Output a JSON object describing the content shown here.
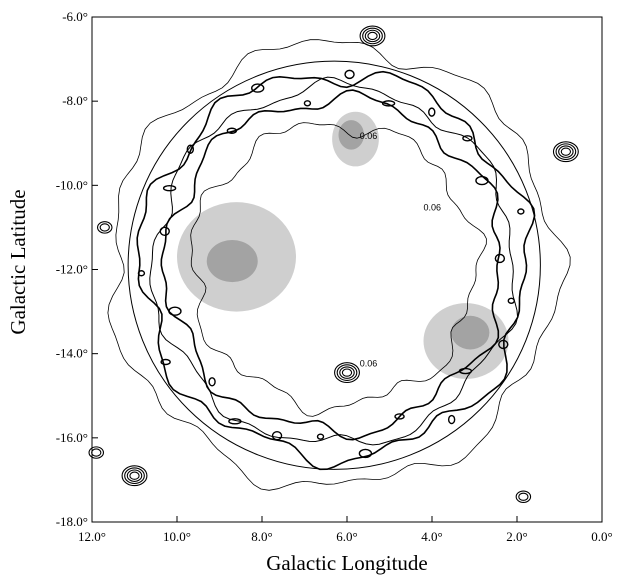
{
  "chart_data": {
    "type": "contour",
    "title": "",
    "xlabel": "Galactic Longitude",
    "ylabel": "Galactic Latitude",
    "xlim": [
      12.0,
      0.0
    ],
    "ylim": [
      -18.0,
      -6.0
    ],
    "x_reversed": true,
    "grid": false,
    "legend": "none",
    "x_ticks": [
      {
        "value": 12,
        "label": "12.0°"
      },
      {
        "value": 10,
        "label": "10.0°"
      },
      {
        "value": 8,
        "label": "8.0°"
      },
      {
        "value": 6,
        "label": "6.0°"
      },
      {
        "value": 4,
        "label": "4.0°"
      },
      {
        "value": 2,
        "label": "2.0°"
      },
      {
        "value": 0,
        "label": "0.0°"
      }
    ],
    "y_ticks": [
      {
        "value": -6,
        "label": "-6.0°"
      },
      {
        "value": -8,
        "label": "-8.0°"
      },
      {
        "value": -10,
        "label": "-10.0°"
      },
      {
        "value": -12,
        "label": "-12.0°"
      },
      {
        "value": -14,
        "label": "-14.0°"
      },
      {
        "value": -16,
        "label": "-16.0°"
      },
      {
        "value": -18,
        "label": "-18.0°"
      }
    ],
    "circle": {
      "center_l": 6.3,
      "center_b": -11.9,
      "radius_deg": 4.85
    },
    "shaded_regions": [
      {
        "name": "cloud-9-11",
        "l": 8.6,
        "b": -11.7,
        "rx": 1.4,
        "ry": 1.3,
        "level": 1
      },
      {
        "name": "cloud-9-11",
        "l": 8.7,
        "b": -11.8,
        "rx": 0.6,
        "ry": 0.5,
        "level": 2
      },
      {
        "name": "cloud-6-9",
        "l": 5.8,
        "b": -8.9,
        "rx": 0.55,
        "ry": 0.65,
        "level": 1
      },
      {
        "name": "cloud-6-9",
        "l": 5.9,
        "b": -8.8,
        "rx": 0.3,
        "ry": 0.35,
        "level": 2
      },
      {
        "name": "cloud-3-13",
        "l": 3.2,
        "b": -13.7,
        "rx": 1.0,
        "ry": 0.9,
        "level": 1
      },
      {
        "name": "cloud-3-13",
        "l": 3.1,
        "b": -13.5,
        "rx": 0.45,
        "ry": 0.4,
        "level": 2
      }
    ],
    "ring": {
      "center_l": 6.3,
      "center_b": -11.9,
      "inner": 3.6,
      "outer": 4.9
    },
    "compact_sources": [
      {
        "l": 5.4,
        "b": -6.45,
        "rings": 4
      },
      {
        "l": 0.85,
        "b": -9.2,
        "rings": 4
      },
      {
        "l": 6.0,
        "b": -14.45,
        "rings": 4
      },
      {
        "l": 11.0,
        "b": -16.9,
        "rings": 4
      },
      {
        "l": 11.9,
        "b": -16.35,
        "rings": 2
      },
      {
        "l": 1.85,
        "b": -17.4,
        "rings": 2
      },
      {
        "l": 11.7,
        "b": -11.0,
        "rings": 2
      }
    ],
    "contour_labels": [
      {
        "text": "0.06",
        "l": 5.7,
        "b": -8.9
      },
      {
        "text": "0.06",
        "l": 4.2,
        "b": -10.6
      },
      {
        "text": "0.06",
        "l": 5.7,
        "b": -14.3
      }
    ]
  }
}
